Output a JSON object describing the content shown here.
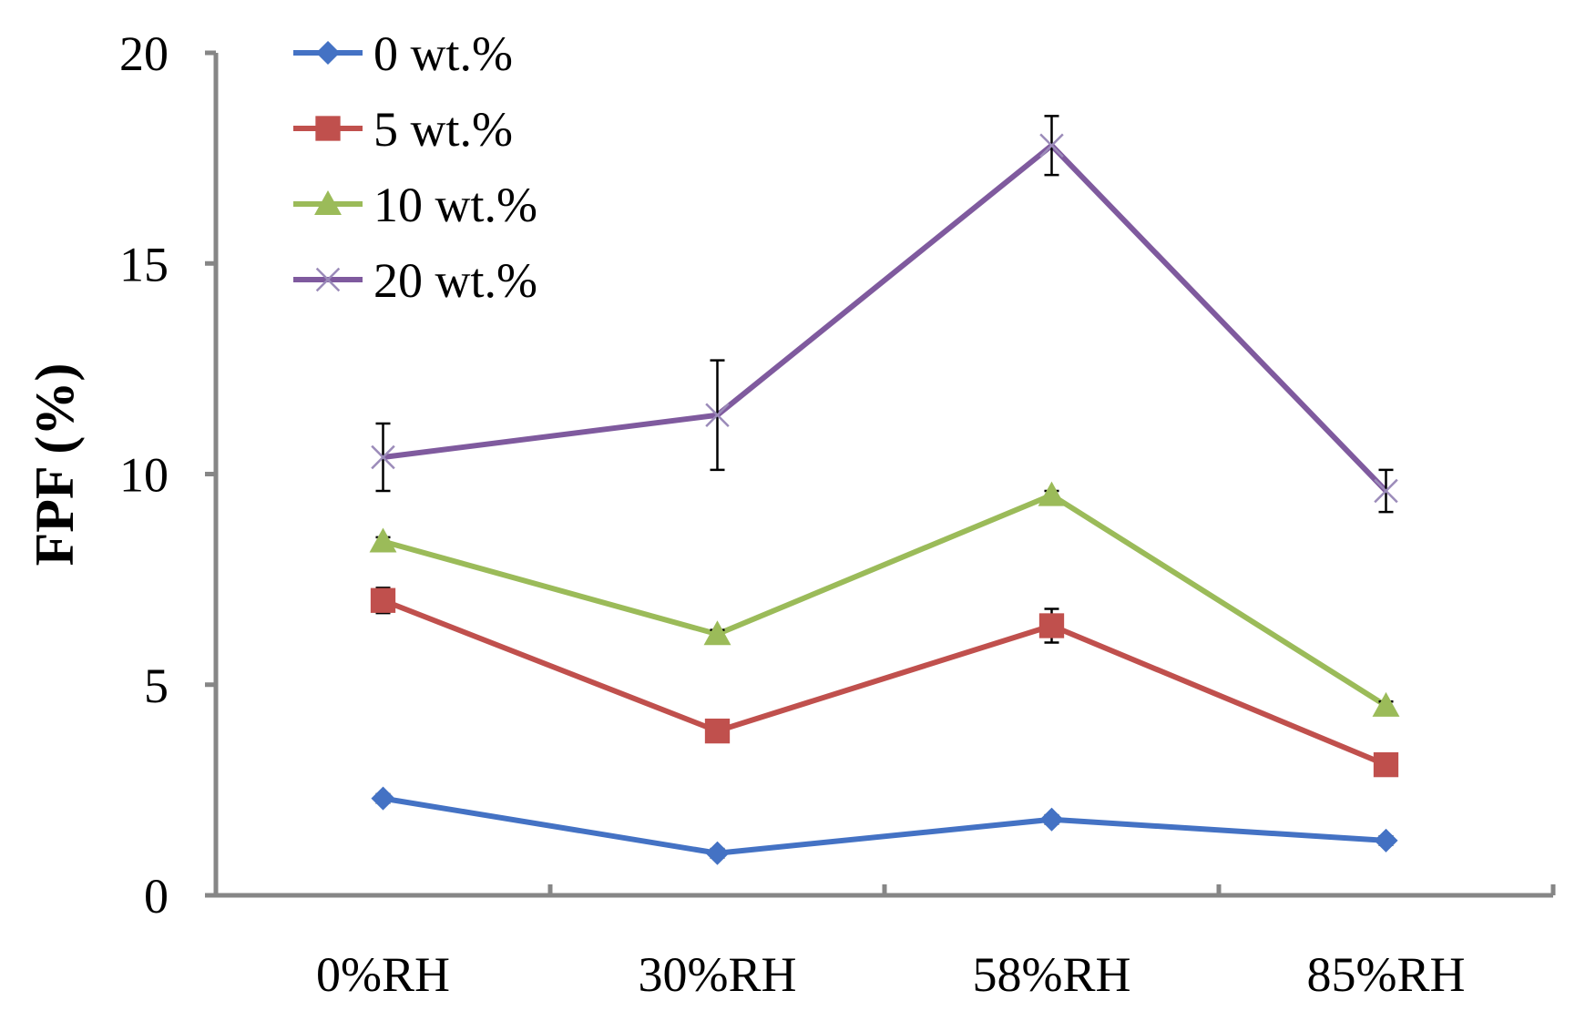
{
  "chart_data": {
    "type": "line",
    "title": "",
    "xlabel": "",
    "ylabel": "FPF (%)",
    "ylim": [
      0,
      20
    ],
    "yticks": [
      0,
      5,
      10,
      15,
      20
    ],
    "ytick_labels": [
      "0",
      "5",
      "10",
      "15",
      "20"
    ],
    "categories": [
      "0%RH",
      "30%RH",
      "58%RH",
      "85%RH"
    ],
    "legend_position": "top-left",
    "grid": false,
    "series": [
      {
        "name": "0 wt.%",
        "color": "#4472C4",
        "marker": "diamond",
        "values": [
          2.3,
          1.0,
          1.8,
          1.3
        ],
        "errors": [
          0.1,
          0.1,
          0.1,
          0.1
        ]
      },
      {
        "name": "5 wt.%",
        "color": "#C0504D",
        "marker": "square",
        "values": [
          7.0,
          3.9,
          6.4,
          3.1
        ],
        "errors": [
          0.3,
          0.1,
          0.4,
          0.1
        ]
      },
      {
        "name": "10 wt.%",
        "color": "#9BBB59",
        "marker": "triangle",
        "values": [
          8.4,
          6.2,
          9.5,
          4.5
        ],
        "errors": [
          0.1,
          0.1,
          0.1,
          0.1
        ]
      },
      {
        "name": "20 wt.%",
        "color": "#7F5A9E",
        "marker": "x",
        "values": [
          10.4,
          11.4,
          17.8,
          9.6
        ],
        "errors": [
          0.8,
          1.3,
          0.7,
          0.5
        ]
      }
    ]
  }
}
